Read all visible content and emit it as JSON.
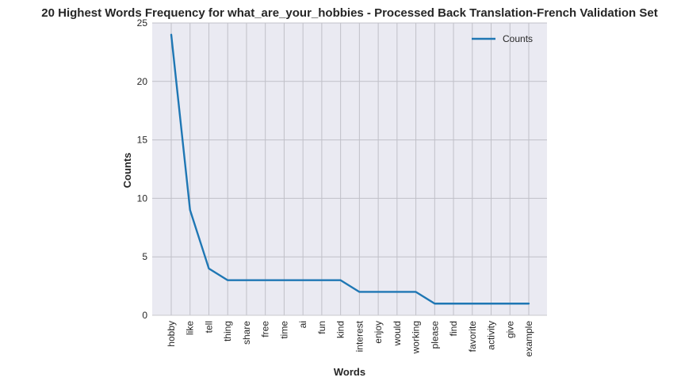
{
  "chart_data": {
    "type": "line",
    "title": "20 Highest Words Frequency for what_are_your_hobbies - Processed Back Translation-French Validation Set",
    "xlabel": "Words",
    "ylabel": "Counts",
    "categories": [
      "hobby",
      "like",
      "tell",
      "thing",
      "share",
      "free",
      "time",
      "ai",
      "fun",
      "kind",
      "interest",
      "enjoy",
      "would",
      "working",
      "please",
      "find",
      "favorite",
      "activity",
      "give",
      "example"
    ],
    "series": [
      {
        "name": "Counts",
        "values": [
          24,
          9,
          4,
          3,
          3,
          3,
          3,
          3,
          3,
          3,
          2,
          2,
          2,
          2,
          1,
          1,
          1,
          1,
          1,
          1
        ],
        "color": "#1f77b4"
      }
    ],
    "ylim": [
      0,
      25
    ],
    "yticks": [
      0,
      5,
      10,
      15,
      20,
      25
    ],
    "grid": true,
    "legend": "upper right",
    "background": "#eaeaf2",
    "grid_color": "#c0c0c8"
  }
}
